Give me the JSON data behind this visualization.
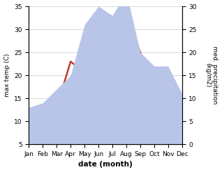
{
  "months": [
    "Jan",
    "Feb",
    "Mar",
    "Apr",
    "May",
    "Jun",
    "Jul",
    "Aug",
    "Sep",
    "Oct",
    "Nov",
    "Dec"
  ],
  "temperature": [
    7.5,
    8.0,
    13.0,
    23.0,
    20.5,
    30.0,
    32.0,
    33.0,
    25.0,
    17.0,
    12.0,
    10.0
  ],
  "precipitation": [
    8.0,
    9.0,
    12.0,
    15.0,
    26.0,
    30.0,
    28.0,
    33.0,
    20.0,
    17.0,
    17.0,
    11.0
  ],
  "temp_color": "#c0392b",
  "precip_fill_color": "#b8c4e8",
  "temp_ylim": [
    5,
    35
  ],
  "temp_yticks": [
    5,
    10,
    15,
    20,
    25,
    30,
    35
  ],
  "precip_ylim": [
    0,
    30
  ],
  "precip_yticks": [
    0,
    5,
    10,
    15,
    20,
    25,
    30
  ],
  "xlabel": "date (month)",
  "ylabel_left": "max temp (C)",
  "ylabel_right": "med. precipitation\n(kg/m2)",
  "fig_width": 3.18,
  "fig_height": 2.47,
  "dpi": 100
}
